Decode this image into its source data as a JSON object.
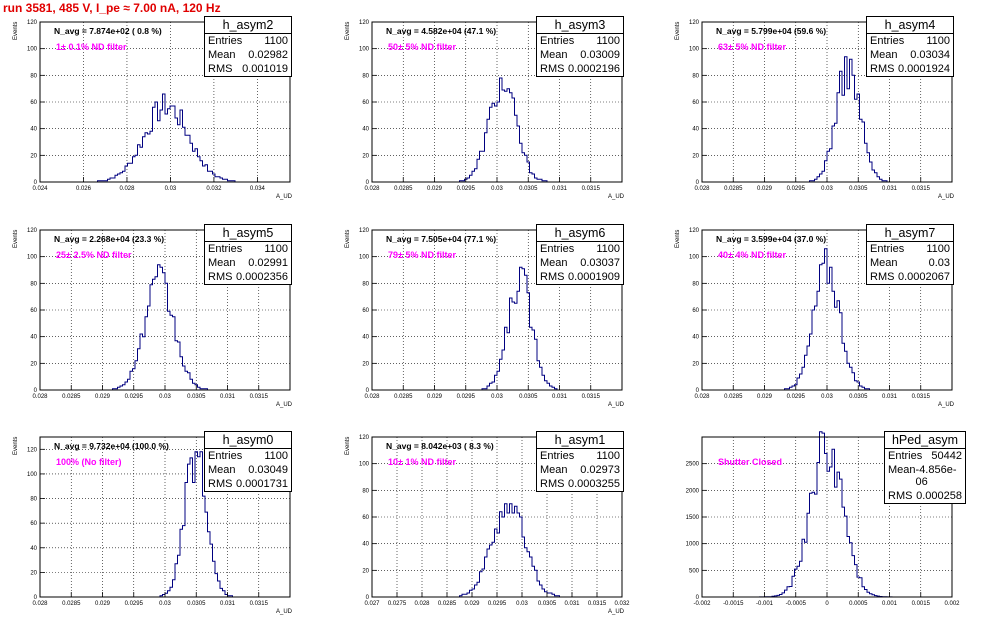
{
  "header": {
    "title": "run 3581,   485 V, I_pe ≈ 7.00 nA, 120 Hz"
  },
  "colors": {
    "hist": "#000080",
    "title": "#e00000",
    "filter": "#ff00ff",
    "grid": "#000000"
  },
  "chart_data": [
    {
      "type": "histogram",
      "name": "h_asym2",
      "navg": "N_avg = 7.874e+02 ( 0.8 %)",
      "filter": "1± 0.1% ND filter",
      "stats": {
        "entries": "1100",
        "mean": "0.02982",
        "rms": "0.001019"
      },
      "ylabel": "Events",
      "xlabel": "A_UD",
      "xlim": [
        0.024,
        0.0355
      ],
      "ylim": [
        0,
        120
      ],
      "xticks": [
        0.024,
        0.026,
        0.028,
        0.03,
        0.032,
        0.034
      ],
      "xtick_labels": [
        "0.024",
        "0.026",
        "0.028",
        "0.03",
        "0.032",
        "0.034"
      ],
      "yticks": [
        0,
        20,
        40,
        60,
        80,
        100,
        120
      ],
      "peak": 57,
      "mean": 0.02982,
      "rms": 0.001019,
      "nbins": 100
    },
    {
      "type": "histogram",
      "name": "h_asym3",
      "navg": "N_avg = 4.582e+04 (47.1 %)",
      "filter": "50± 5% ND filter",
      "stats": {
        "entries": "1100",
        "mean": "0.03009",
        "rms": "0.0002196"
      },
      "ylabel": "Events",
      "xlabel": "A_UD",
      "xlim": [
        0.028,
        0.032
      ],
      "ylim": [
        0,
        120
      ],
      "xticks": [
        0.028,
        0.0285,
        0.029,
        0.0295,
        0.03,
        0.0305,
        0.031,
        0.0315
      ],
      "xtick_labels": [
        "0.028",
        "0.0285",
        "0.029",
        "0.0295",
        "0.03",
        "0.0305",
        "0.031",
        "0.0315"
      ],
      "yticks": [
        0,
        20,
        40,
        60,
        80,
        100,
        120
      ],
      "peak": 73,
      "mean": 0.03009,
      "rms": 0.0002196,
      "nbins": 100
    },
    {
      "type": "histogram",
      "name": "h_asym4",
      "navg": "N_avg = 5.799e+04 (59.6 %)",
      "filter": "63± 5% ND filter",
      "stats": {
        "entries": "1100",
        "mean": "0.03034",
        "rms": "0.0001924"
      },
      "ylabel": "Events",
      "xlabel": "A_UD",
      "xlim": [
        0.028,
        0.032
      ],
      "ylim": [
        0,
        120
      ],
      "xticks": [
        0.028,
        0.0285,
        0.029,
        0.0295,
        0.03,
        0.0305,
        0.031,
        0.0315
      ],
      "xtick_labels": [
        "0.028",
        "0.0285",
        "0.029",
        "0.0295",
        "0.03",
        "0.0305",
        "0.031",
        "0.0315"
      ],
      "yticks": [
        0,
        20,
        40,
        60,
        80,
        100,
        120
      ],
      "peak": 85,
      "mean": 0.03034,
      "rms": 0.0001924,
      "nbins": 100
    },
    {
      "type": "histogram",
      "name": "h_asym5",
      "navg": "N_avg = 2.268e+04 (23.3 %)",
      "filter": "25± 2.5% ND filter",
      "stats": {
        "entries": "1100",
        "mean": "0.02991",
        "rms": "0.0002356"
      },
      "ylabel": "Events",
      "xlabel": "A_UD",
      "xlim": [
        0.028,
        0.032
      ],
      "ylim": [
        0,
        120
      ],
      "xticks": [
        0.028,
        0.0285,
        0.029,
        0.0295,
        0.03,
        0.0305,
        0.031,
        0.0315
      ],
      "xtick_labels": [
        "0.028",
        "0.0285",
        "0.029",
        "0.0295",
        "0.03",
        "0.0305",
        "0.031",
        "0.0315"
      ],
      "yticks": [
        0,
        20,
        40,
        60,
        80,
        100,
        120
      ],
      "peak": 80,
      "mean": 0.02991,
      "rms": 0.0002356,
      "nbins": 100
    },
    {
      "type": "histogram",
      "name": "h_asym6",
      "navg": "N_avg = 7.505e+04 (77.1 %)",
      "filter": "79± 5% ND filter",
      "stats": {
        "entries": "1100",
        "mean": "0.03037",
        "rms": "0.0001909"
      },
      "ylabel": "Events",
      "xlabel": "A_UD",
      "xlim": [
        0.028,
        0.032
      ],
      "ylim": [
        0,
        120
      ],
      "xticks": [
        0.028,
        0.0285,
        0.029,
        0.0295,
        0.03,
        0.0305,
        0.031,
        0.0315
      ],
      "xtick_labels": [
        "0.028",
        "0.0285",
        "0.029",
        "0.0295",
        "0.03",
        "0.0305",
        "0.031",
        "0.0315"
      ],
      "yticks": [
        0,
        20,
        40,
        60,
        80,
        100,
        120
      ],
      "peak": 83,
      "mean": 0.03037,
      "rms": 0.0001909,
      "nbins": 100
    },
    {
      "type": "histogram",
      "name": "h_asym7",
      "navg": "N_avg = 3.599e+04 (37.0 %)",
      "filter": "40± 4% ND filter",
      "stats": {
        "entries": "1100",
        "mean": "0.03",
        "rms": "0.0002067"
      },
      "ylabel": "Events",
      "xlabel": "A_UD",
      "xlim": [
        0.028,
        0.032
      ],
      "ylim": [
        0,
        120
      ],
      "xticks": [
        0.028,
        0.0285,
        0.029,
        0.0295,
        0.03,
        0.0305,
        0.031,
        0.0315
      ],
      "xtick_labels": [
        "0.028",
        "0.0285",
        "0.029",
        "0.0295",
        "0.03",
        "0.0305",
        "0.031",
        "0.0315"
      ],
      "yticks": [
        0,
        20,
        40,
        60,
        80,
        100,
        120
      ],
      "peak": 92,
      "mean": 0.03,
      "rms": 0.0002067,
      "nbins": 100
    },
    {
      "type": "histogram",
      "name": "h_asym0",
      "navg": "N_avg = 9.732e+04 (100.0 %)",
      "filter": "100% (No filter)",
      "stats": {
        "entries": "1100",
        "mean": "0.03049",
        "rms": "0.0001731"
      },
      "ylabel": "Events",
      "xlabel": "A_UD",
      "xlim": [
        0.028,
        0.032
      ],
      "ylim": [
        0,
        130
      ],
      "xticks": [
        0.028,
        0.0285,
        0.029,
        0.0295,
        0.03,
        0.0305,
        0.031,
        0.0315
      ],
      "xtick_labels": [
        "0.028",
        "0.0285",
        "0.029",
        "0.0295",
        "0.03",
        "0.0305",
        "0.031",
        "0.0315"
      ],
      "yticks": [
        0,
        20,
        40,
        60,
        80,
        100,
        120
      ],
      "peak": 115,
      "mean": 0.03049,
      "rms": 0.0001731,
      "nbins": 100
    },
    {
      "type": "histogram",
      "name": "h_asym1",
      "navg": "N_avg = 8.042e+03 ( 8.3 %)",
      "filter": "10± 1% ND filter",
      "stats": {
        "entries": "1100",
        "mean": "0.02973",
        "rms": "0.0003255"
      },
      "ylabel": "Events",
      "xlabel": "A_UD",
      "xlim": [
        0.027,
        0.032
      ],
      "ylim": [
        0,
        120
      ],
      "xticks": [
        0.027,
        0.0275,
        0.028,
        0.0285,
        0.029,
        0.0295,
        0.03,
        0.0305,
        0.031,
        0.0315,
        0.032
      ],
      "xtick_labels": [
        "0.027",
        "0.0275",
        "0.028",
        "0.0285",
        "0.029",
        "0.0295",
        "0.03",
        "0.0305",
        "0.031",
        "0.0315",
        "0.032"
      ],
      "yticks": [
        0,
        20,
        40,
        60,
        80,
        100,
        120
      ],
      "peak": 70,
      "mean": 0.02973,
      "rms": 0.0003255,
      "nbins": 100
    },
    {
      "type": "histogram",
      "name": "hPed_asym",
      "navg": "",
      "filter": "Shutter Closed",
      "stats": {
        "entries": "50442",
        "mean": "-4.856e-06",
        "rms": "0.000258"
      },
      "ylabel": "",
      "xlabel": "",
      "xlim": [
        -0.002,
        0.002
      ],
      "ylim": [
        0,
        3000
      ],
      "xticks": [
        -0.002,
        -0.0015,
        -0.001,
        -0.0005,
        0,
        0.0005,
        0.001,
        0.0015,
        0.002
      ],
      "xtick_labels": [
        "-0.002",
        "-0.0015",
        "-0.001",
        "-0.0005",
        "0",
        "0.0005",
        "0.001",
        "0.0015",
        "0.002"
      ],
      "yticks": [
        0,
        500,
        1000,
        1500,
        2000,
        2500
      ],
      "peak": 2850,
      "mean": -4.856e-06,
      "rms": 0.000258,
      "nbins": 100
    }
  ]
}
